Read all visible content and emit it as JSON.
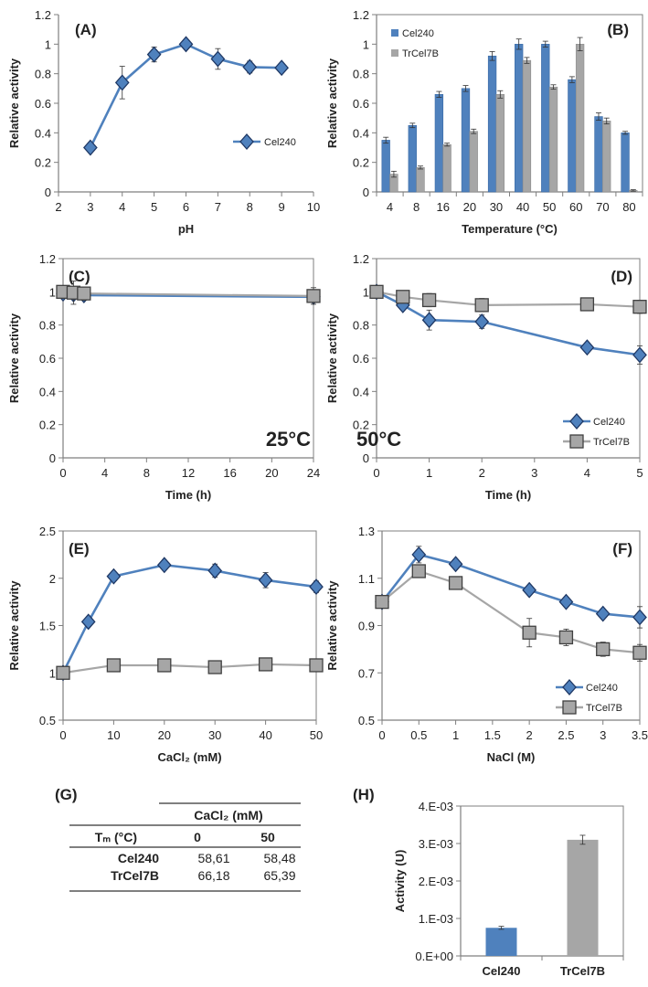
{
  "colors": {
    "cel240": "#4f81bd",
    "cel240_edge": "#1f3864",
    "trcel7b": "#a6a6a6",
    "trcel7b_edge": "#404040",
    "axis": "#7f7f7f"
  },
  "chart_data": [
    {
      "panel_label": "(A)",
      "type": "line",
      "xlabel": "pH",
      "ylabel": "Relative activity",
      "xlim": [
        2,
        10
      ],
      "ylim": [
        0,
        1.2
      ],
      "xticks": [
        2,
        3,
        4,
        5,
        6,
        7,
        8,
        9,
        10
      ],
      "yticks": [
        0,
        0.2,
        0.4,
        0.6,
        0.8,
        1,
        1.2
      ],
      "series": [
        {
          "name": "Cel240",
          "marker": "diamond",
          "x": [
            3,
            4,
            5,
            6,
            7,
            8,
            9
          ],
          "y": [
            0.3,
            0.74,
            0.93,
            1.0,
            0.9,
            0.845,
            0.84
          ],
          "err": [
            0,
            0.11,
            0.05,
            0.03,
            0.07,
            0.04,
            0.02
          ]
        }
      ]
    },
    {
      "panel_label": "(B)",
      "type": "bar",
      "xlabel": "Temperature (°C)",
      "ylabel": "Relative activity",
      "ylim": [
        0,
        1.2
      ],
      "yticks": [
        0,
        0.2,
        0.4,
        0.6,
        0.8,
        1,
        1.2
      ],
      "categories": [
        "4",
        "8",
        "16",
        "20",
        "30",
        "40",
        "50",
        "60",
        "70",
        "80"
      ],
      "series": [
        {
          "name": "Cel240",
          "y": [
            0.35,
            0.45,
            0.66,
            0.7,
            0.92,
            1.0,
            1.0,
            0.76,
            0.51,
            0.4
          ],
          "err": [
            0.02,
            0.015,
            0.02,
            0.02,
            0.03,
            0.035,
            0.02,
            0.02,
            0.025,
            0.01
          ]
        },
        {
          "name": "TrCel7B",
          "y": [
            0.12,
            0.165,
            0.32,
            0.41,
            0.66,
            0.89,
            0.71,
            1.0,
            0.48,
            0.01
          ],
          "err": [
            0.02,
            0.01,
            0.01,
            0.015,
            0.025,
            0.02,
            0.015,
            0.045,
            0.02,
            0.005
          ]
        }
      ]
    },
    {
      "panel_label": "(C)",
      "type": "line",
      "annotation": "25°C",
      "xlabel": "Time (h)",
      "ylabel": "Relative activity",
      "xlim": [
        0,
        24
      ],
      "ylim": [
        0,
        1.2
      ],
      "xticks": [
        0,
        4,
        8,
        12,
        16,
        20,
        24
      ],
      "yticks": [
        0,
        0.2,
        0.4,
        0.6,
        0.8,
        1,
        1.2
      ],
      "series": [
        {
          "name": "Cel240",
          "marker": "diamond",
          "x": [
            0,
            1,
            2,
            24
          ],
          "y": [
            0.99,
            0.985,
            0.98,
            0.97
          ],
          "err": [
            0.02,
            0.03,
            0.03,
            0.03
          ]
        },
        {
          "name": "TrCel7B",
          "marker": "square",
          "x": [
            0,
            1,
            2,
            24
          ],
          "y": [
            1.0,
            0.995,
            0.99,
            0.975
          ],
          "err": [
            0.02,
            0.07,
            0.04,
            0.05
          ]
        }
      ]
    },
    {
      "panel_label": "(D)",
      "type": "line",
      "annotation": "50°C",
      "xlabel": "Time (h)",
      "ylabel": "Relative activity",
      "xlim": [
        0,
        5
      ],
      "ylim": [
        0,
        1.2
      ],
      "xticks": [
        0,
        1,
        2,
        3,
        4,
        5
      ],
      "yticks": [
        0,
        0.2,
        0.4,
        0.6,
        0.8,
        1,
        1.2
      ],
      "legend": [
        "Cel240",
        "TrCel7B"
      ],
      "series": [
        {
          "name": "Cel240",
          "marker": "diamond",
          "x": [
            0,
            0.5,
            1,
            2,
            4,
            5
          ],
          "y": [
            1.0,
            0.92,
            0.83,
            0.82,
            0.665,
            0.62
          ],
          "err": [
            0,
            0.02,
            0.06,
            0.04,
            0.02,
            0.055
          ]
        },
        {
          "name": "TrCel7B",
          "marker": "square",
          "x": [
            0,
            0.5,
            1,
            2,
            4,
            5
          ],
          "y": [
            1.0,
            0.97,
            0.95,
            0.92,
            0.925,
            0.91
          ],
          "err": [
            0,
            0.02,
            0.04,
            0.04,
            0.02,
            0.04
          ]
        }
      ]
    },
    {
      "panel_label": "(E)",
      "type": "line",
      "xlabel": "CaCl₂ (mM)",
      "ylabel": "Relative activity",
      "xlim": [
        0,
        50
      ],
      "ylim": [
        0.5,
        2.5
      ],
      "xticks": [
        0,
        10,
        20,
        30,
        40,
        50
      ],
      "yticks": [
        0.5,
        1,
        1.5,
        2,
        2.5
      ],
      "series": [
        {
          "name": "Cel240",
          "marker": "diamond",
          "x": [
            0,
            5,
            10,
            20,
            30,
            40,
            50
          ],
          "y": [
            1.0,
            1.54,
            2.02,
            2.14,
            2.08,
            1.98,
            1.91
          ],
          "err": [
            0,
            0.03,
            0.03,
            0.03,
            0.07,
            0.08,
            0.06
          ]
        },
        {
          "name": "TrCel7B",
          "marker": "square",
          "x": [
            0,
            10,
            20,
            30,
            40,
            50
          ],
          "y": [
            1.0,
            1.08,
            1.08,
            1.06,
            1.09,
            1.08
          ],
          "err": [
            0,
            0.03,
            0.03,
            0.03,
            0.03,
            0.03
          ]
        }
      ]
    },
    {
      "panel_label": "(F)",
      "type": "line",
      "xlabel": "NaCl (M)",
      "ylabel": "Relative activity",
      "xlim": [
        0,
        3.5
      ],
      "ylim": [
        0.5,
        1.3
      ],
      "xticks": [
        0,
        0.5,
        1,
        1.5,
        2,
        2.5,
        3,
        3.5
      ],
      "yticks": [
        0.5,
        0.7,
        0.9,
        1.1,
        1.3
      ],
      "legend": [
        "Cel240",
        "TrCel7B"
      ],
      "series": [
        {
          "name": "Cel240",
          "marker": "diamond",
          "x": [
            0,
            0.5,
            1,
            2,
            2.5,
            3,
            3.5
          ],
          "y": [
            1.0,
            1.2,
            1.16,
            1.05,
            1.0,
            0.95,
            0.935
          ],
          "err": [
            0,
            0.035,
            0.01,
            0.015,
            0.02,
            0.01,
            0.045
          ]
        },
        {
          "name": "TrCel7B",
          "marker": "square",
          "x": [
            0,
            0.5,
            1,
            2,
            2.5,
            3,
            3.5
          ],
          "y": [
            1.0,
            1.13,
            1.08,
            0.87,
            0.85,
            0.8,
            0.785
          ],
          "err": [
            0,
            0.02,
            0.01,
            0.06,
            0.035,
            0.03,
            0.035
          ]
        }
      ]
    },
    {
      "panel_label": "(H)",
      "type": "bar",
      "xlabel": "",
      "ylabel": "Activity (U)",
      "ylim": [
        0,
        0.004
      ],
      "yticks": [
        0,
        0.001,
        0.002,
        0.003,
        0.004
      ],
      "ytick_labels": [
        "0.E+00",
        "1.E-03",
        "2.E-03",
        "3.E-03",
        "4.E-03"
      ],
      "categories": [
        "Cel240",
        "TrCel7B"
      ],
      "values": [
        0.00075,
        0.0031
      ],
      "err": [
        4e-05,
        0.00012
      ]
    }
  ],
  "table": {
    "panel_label": "(G)",
    "group_header": "CaCl₂ (mM)",
    "row_header": "Tₘ (°C)",
    "columns": [
      "0",
      "50"
    ],
    "rows": [
      {
        "label": "Cel240",
        "values": [
          "58,61",
          "58,48"
        ]
      },
      {
        "label": "TrCel7B",
        "values": [
          "66,18",
          "65,39"
        ]
      }
    ]
  }
}
